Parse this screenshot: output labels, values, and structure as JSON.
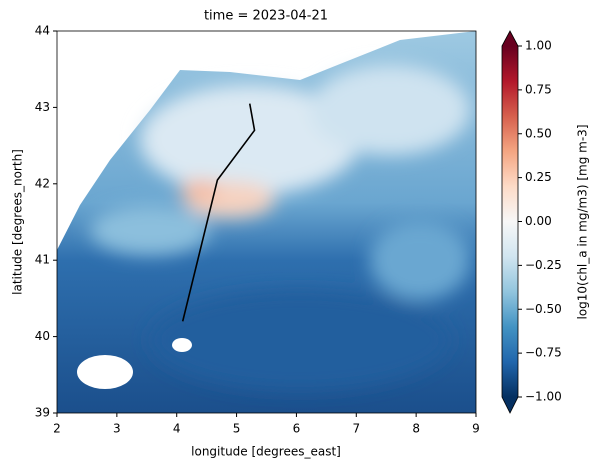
{
  "chart_data": {
    "type": "heatmap",
    "title": "time = 2023-04-21",
    "x_label": "longitude [degrees_east]",
    "y_label": "latitude [degrees_north]",
    "xlim": [
      2,
      9
    ],
    "xticks": [
      2,
      3,
      4,
      5,
      6,
      7,
      8,
      9
    ],
    "ylim": [
      39,
      44
    ],
    "yticks": [
      39,
      40,
      41,
      42,
      43,
      44
    ],
    "series": [
      {
        "color": "#000000",
        "x": [
          4.1,
          4.68,
          5.3,
          5.22
        ],
        "y": [
          40.2,
          42.05,
          42.7,
          43.05
        ]
      }
    ],
    "colorbar": {
      "label": "log10(chl_a in mg/m3) [mg m-3]",
      "clim": [
        -1,
        1
      ],
      "ticks": [
        {
          "value": -1,
          "label": "−1.00"
        },
        {
          "value": -0.75,
          "label": "−0.75"
        },
        {
          "value": -0.5,
          "label": "−0.50"
        },
        {
          "value": -0.25,
          "label": "−0.25"
        },
        {
          "value": 0,
          "label": "0.00"
        },
        {
          "value": 0.25,
          "label": "0.25"
        },
        {
          "value": 0.5,
          "label": "0.50"
        },
        {
          "value": 0.75,
          "label": "0.75"
        },
        {
          "value": 1,
          "label": "1.00"
        }
      ]
    }
  }
}
